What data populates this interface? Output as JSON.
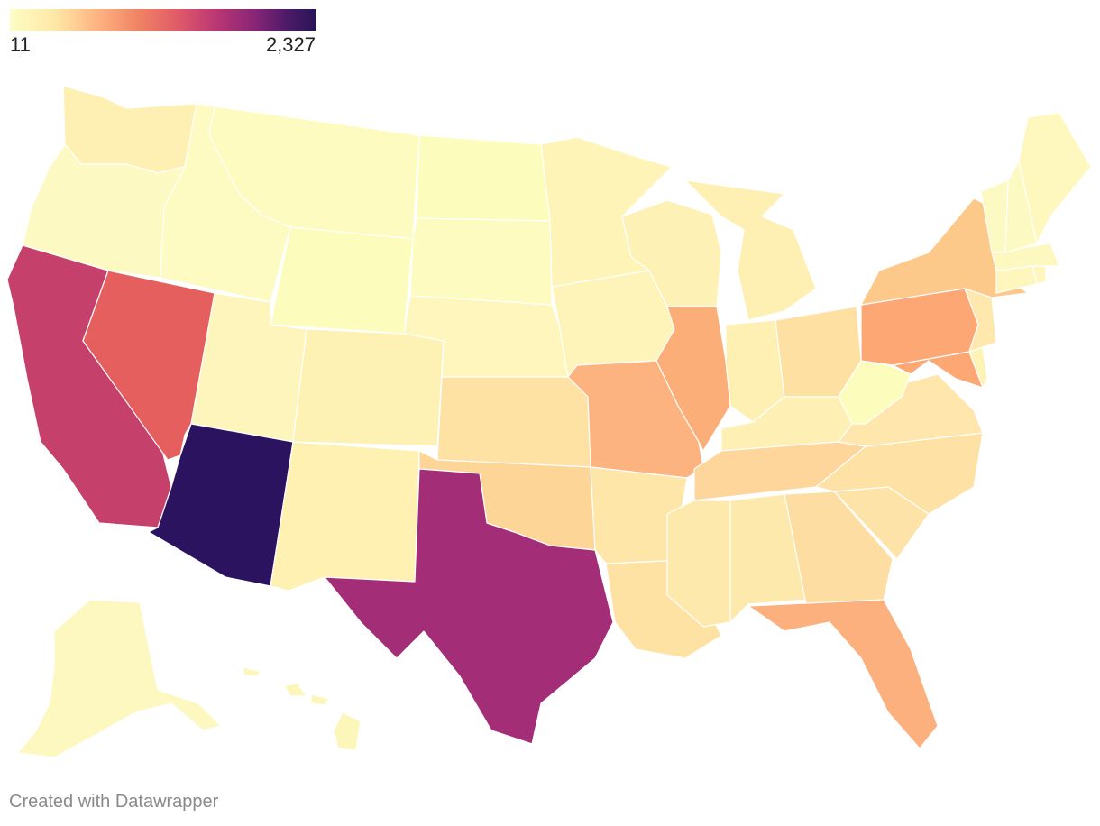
{
  "legend": {
    "min_label": "11",
    "max_label": "2,327",
    "min_value": 11,
    "max_value": 2327,
    "scale_colors": [
      "#fdfdc4",
      "#fee7a6",
      "#fdae7f",
      "#f08464",
      "#e05a68",
      "#b83674",
      "#8a2577",
      "#4f1b68",
      "#2a1458"
    ]
  },
  "footer": {
    "credit": "Created with Datawrapper"
  },
  "map_data": {
    "type": "choropleth",
    "region": "United States",
    "states": [
      {
        "id": "WA",
        "fill": "#fef0b2"
      },
      {
        "id": "OR",
        "fill": "#fdf9c2"
      },
      {
        "id": "CA",
        "fill": "#c5416b"
      },
      {
        "id": "NV",
        "fill": "#e45f5d"
      },
      {
        "id": "ID",
        "fill": "#fdfac2"
      },
      {
        "id": "MT",
        "fill": "#fdfbc0"
      },
      {
        "id": "WY",
        "fill": "#fcfcbd"
      },
      {
        "id": "UT",
        "fill": "#fef5bd"
      },
      {
        "id": "AZ",
        "fill": "#2c1360"
      },
      {
        "id": "CO",
        "fill": "#fef1b4"
      },
      {
        "id": "NM",
        "fill": "#fef1b1"
      },
      {
        "id": "ND",
        "fill": "#fcfcbd"
      },
      {
        "id": "SD",
        "fill": "#fdfbbf"
      },
      {
        "id": "NE",
        "fill": "#fef6bc"
      },
      {
        "id": "KS",
        "fill": "#fee2a4"
      },
      {
        "id": "OK",
        "fill": "#fdd596"
      },
      {
        "id": "TX",
        "fill": "#a42d77"
      },
      {
        "id": "MN",
        "fill": "#fef4b8"
      },
      {
        "id": "IA",
        "fill": "#fef4b9"
      },
      {
        "id": "MO",
        "fill": "#fdb37f"
      },
      {
        "id": "AR",
        "fill": "#fee5a8"
      },
      {
        "id": "LA",
        "fill": "#fee2a4"
      },
      {
        "id": "WI",
        "fill": "#fef1b6"
      },
      {
        "id": "IL",
        "fill": "#fcae78"
      },
      {
        "id": "MI",
        "fill": "#fef0b3"
      },
      {
        "id": "IN",
        "fill": "#feefb3"
      },
      {
        "id": "OH",
        "fill": "#fee0a3"
      },
      {
        "id": "KY",
        "fill": "#fef0b4"
      },
      {
        "id": "TN",
        "fill": "#fed59a"
      },
      {
        "id": "MS",
        "fill": "#fee9ad"
      },
      {
        "id": "AL",
        "fill": "#fee9ac"
      },
      {
        "id": "GA",
        "fill": "#fedda2"
      },
      {
        "id": "FL",
        "fill": "#fcb07d"
      },
      {
        "id": "SC",
        "fill": "#fee3a9"
      },
      {
        "id": "NC",
        "fill": "#fee1a4"
      },
      {
        "id": "VA",
        "fill": "#fee6ac"
      },
      {
        "id": "WV",
        "fill": "#fcfcbd"
      },
      {
        "id": "MD",
        "fill": "#fca774"
      },
      {
        "id": "DE",
        "fill": "#fef3b7"
      },
      {
        "id": "PA",
        "fill": "#fca774"
      },
      {
        "id": "NJ",
        "fill": "#fee8ad"
      },
      {
        "id": "NY",
        "fill": "#fdc98a"
      },
      {
        "id": "CT",
        "fill": "#fef6bc"
      },
      {
        "id": "RI",
        "fill": "#fef6bc"
      },
      {
        "id": "MA",
        "fill": "#fdf7c0"
      },
      {
        "id": "VT",
        "fill": "#fdf9c2"
      },
      {
        "id": "NH",
        "fill": "#fdf9c2"
      },
      {
        "id": "ME",
        "fill": "#fef8be"
      },
      {
        "id": "AK",
        "fill": "#fdf8c0"
      },
      {
        "id": "HI",
        "fill": "#fdf6bb"
      }
    ]
  }
}
